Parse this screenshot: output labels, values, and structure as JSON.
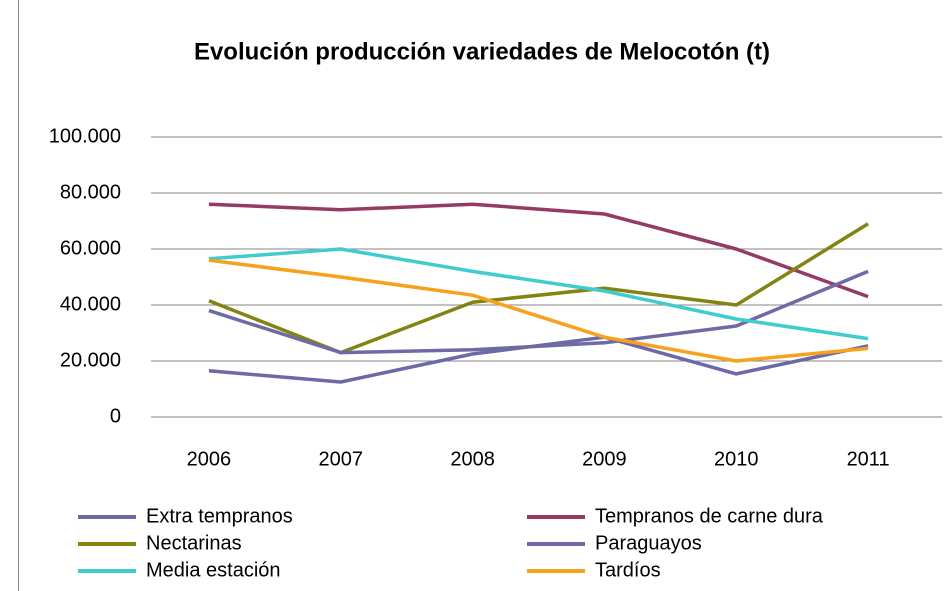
{
  "chart_data": {
    "type": "line",
    "title": "Evolución producción variedades de Melocotón (t)",
    "categories": [
      "2006",
      "2007",
      "2008",
      "2009",
      "2010",
      "2011"
    ],
    "series": [
      {
        "name": "Extra tempranos",
        "color": "#6b69a8",
        "values": [
          16500,
          12500,
          22500,
          28500,
          15400,
          25400
        ]
      },
      {
        "name": "Tempranos de carne dura",
        "color": "#953a62",
        "values": [
          76000,
          74000,
          76000,
          72500,
          60000,
          43000
        ]
      },
      {
        "name": "Nectarinas",
        "color": "#838312",
        "values": [
          41500,
          23000,
          41000,
          46000,
          40000,
          69000
        ]
      },
      {
        "name": "Paraguayos",
        "color": "#6e6aa5",
        "values": [
          38000,
          23000,
          24000,
          26500,
          32500,
          52000
        ]
      },
      {
        "name": "Media estación",
        "color": "#3fcccc",
        "values": [
          56500,
          60000,
          52000,
          45000,
          35000,
          28000
        ]
      },
      {
        "name": "Tardíos",
        "color": "#f7a11c",
        "values": [
          56000,
          50000,
          43500,
          28500,
          20000,
          24500
        ]
      }
    ],
    "ylim": [
      0,
      100000
    ],
    "yticks": [
      0,
      {
        "value": 20000,
        "label": "20.000"
      },
      {
        "value": 40000,
        "label": "40.000"
      },
      {
        "value": 60000,
        "label": "60.000"
      },
      {
        "value": 80000,
        "label": "80.000"
      },
      {
        "value": 100000,
        "label": "100.000"
      }
    ],
    "grid": true,
    "legend": "bottom"
  }
}
